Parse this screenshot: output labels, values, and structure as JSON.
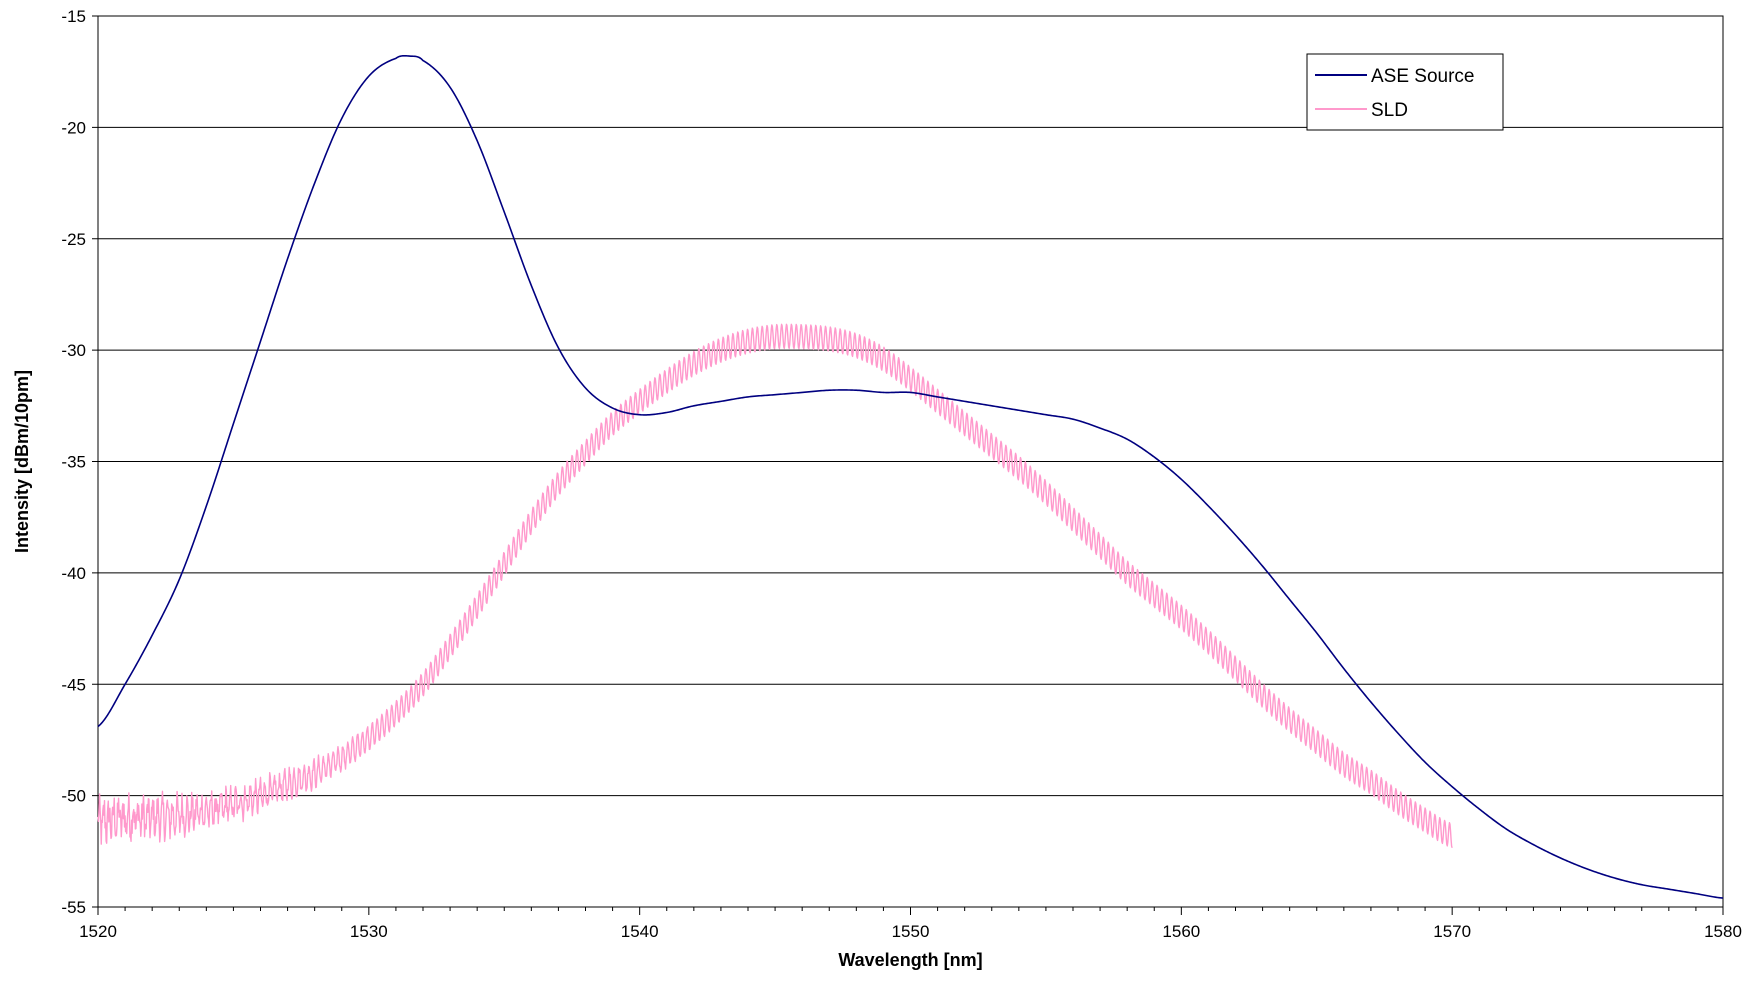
{
  "chart_data": {
    "type": "line",
    "title": "",
    "xlabel": "Wavelength [nm]",
    "ylabel": "Intensity [dBm/10pm]",
    "xlim": [
      1520,
      1580
    ],
    "ylim": [
      -55,
      -15
    ],
    "x_ticks": [
      1520,
      1530,
      1540,
      1550,
      1560,
      1570,
      1580
    ],
    "y_ticks": [
      -15,
      -20,
      -25,
      -30,
      -35,
      -40,
      -45,
      -50,
      -55
    ],
    "grid": "horizontal",
    "legend_position": "top-right",
    "series": [
      {
        "name": "ASE Source",
        "color": "#000080",
        "style": "smooth",
        "x": [
          1520,
          1521,
          1522,
          1523,
          1524,
          1525,
          1526,
          1527,
          1528,
          1529,
          1530,
          1531,
          1531.5,
          1532,
          1533,
          1534,
          1535,
          1536,
          1537,
          1538,
          1539,
          1540,
          1541,
          1542,
          1543,
          1544,
          1545,
          1546,
          1547,
          1548,
          1549,
          1550,
          1551,
          1552,
          1553,
          1554,
          1555,
          1556,
          1557,
          1558,
          1559,
          1560,
          1561,
          1562,
          1563,
          1564,
          1565,
          1566,
          1567,
          1568,
          1569,
          1570,
          1571,
          1572,
          1573,
          1574,
          1575,
          1576,
          1577,
          1578,
          1579,
          1580
        ],
        "y": [
          -46.9,
          -45.0,
          -42.8,
          -40.3,
          -37.0,
          -33.3,
          -29.6,
          -25.9,
          -22.5,
          -19.6,
          -17.7,
          -16.9,
          -16.8,
          -17.0,
          -18.2,
          -20.6,
          -23.8,
          -27.1,
          -29.9,
          -31.7,
          -32.6,
          -32.9,
          -32.8,
          -32.5,
          -32.3,
          -32.1,
          -32.0,
          -31.9,
          -31.8,
          -31.8,
          -31.9,
          -31.9,
          -32.1,
          -32.3,
          -32.5,
          -32.7,
          -32.9,
          -33.1,
          -33.5,
          -34.0,
          -34.8,
          -35.8,
          -37.0,
          -38.3,
          -39.7,
          -41.2,
          -42.7,
          -44.3,
          -45.8,
          -47.2,
          -48.5,
          -49.6,
          -50.6,
          -51.5,
          -52.2,
          -52.8,
          -53.3,
          -53.7,
          -54.0,
          -54.2,
          -54.4,
          -54.6
        ]
      },
      {
        "name": "SLD",
        "color": "#ff99cc",
        "style": "ripple",
        "x": [
          1520,
          1521,
          1522,
          1523,
          1524,
          1525,
          1526,
          1527,
          1528,
          1529,
          1530,
          1531,
          1532,
          1533,
          1534,
          1535,
          1536,
          1537,
          1538,
          1539,
          1540,
          1541,
          1542,
          1543,
          1544,
          1545,
          1546,
          1547,
          1548,
          1549,
          1550,
          1551,
          1552,
          1553,
          1554,
          1555,
          1556,
          1557,
          1558,
          1559,
          1560,
          1561,
          1562,
          1563,
          1564,
          1565,
          1566,
          1567,
          1568,
          1569,
          1570
        ],
        "y": [
          -51.2,
          -51.0,
          -51.0,
          -50.9,
          -50.7,
          -50.4,
          -50.0,
          -49.5,
          -49.0,
          -48.3,
          -47.4,
          -46.3,
          -45.0,
          -43.3,
          -41.5,
          -39.6,
          -37.7,
          -36.0,
          -34.6,
          -33.3,
          -32.3,
          -31.4,
          -30.6,
          -30.0,
          -29.6,
          -29.4,
          -29.4,
          -29.5,
          -29.8,
          -30.4,
          -31.3,
          -32.3,
          -33.3,
          -34.3,
          -35.3,
          -36.4,
          -37.6,
          -38.8,
          -40.0,
          -41.0,
          -42.0,
          -43.1,
          -44.3,
          -45.5,
          -46.6,
          -47.6,
          -48.6,
          -49.4,
          -50.3,
          -51.1,
          -51.8
        ],
        "ripple_amplitude_db": 0.55,
        "ripple_period_nm": 0.18
      }
    ]
  }
}
